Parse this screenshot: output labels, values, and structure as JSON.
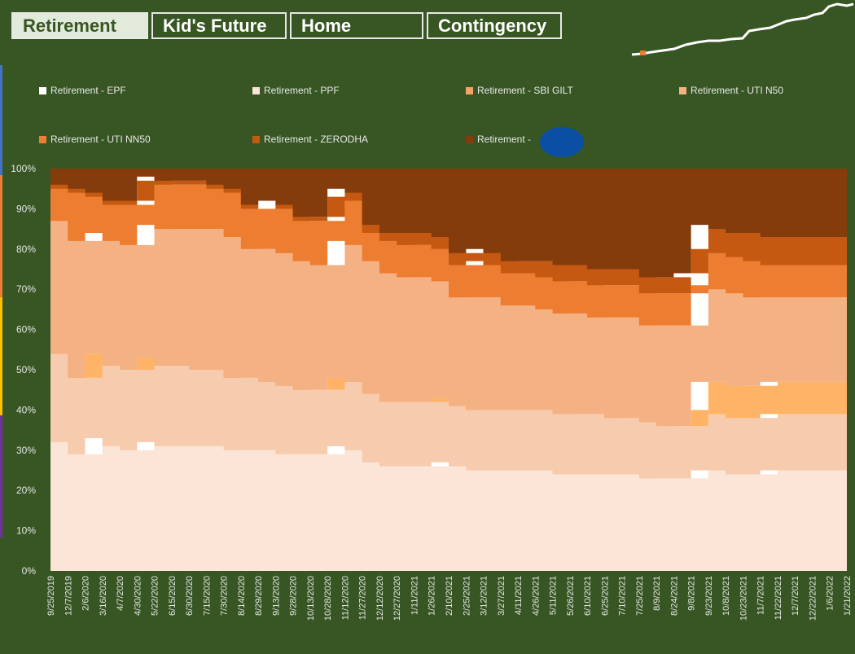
{
  "tabs": [
    {
      "label": "Retirement",
      "active": true
    },
    {
      "label": "Kid's Future",
      "active": false
    },
    {
      "label": "Home",
      "active": false
    },
    {
      "label": "Contingency",
      "active": false
    }
  ],
  "colors": {
    "background": "#375623",
    "tab_active_bg": "#e2eadb"
  },
  "sparkline_icon": "trend-sparkline-icon",
  "chart_data": {
    "type": "area",
    "stacked": true,
    "percent": true,
    "title": "",
    "xlabel": "",
    "ylabel": "",
    "ylim": [
      0,
      100
    ],
    "yticks": [
      "0%",
      "10%",
      "20%",
      "30%",
      "40%",
      "50%",
      "60%",
      "70%",
      "80%",
      "90%",
      "100%"
    ],
    "x": [
      "9/25/2019",
      "12/7/2019",
      "2/6/2020",
      "3/16/2020",
      "4/7/2020",
      "4/30/2020",
      "5/22/2020",
      "6/15/2020",
      "6/30/2020",
      "7/15/2020",
      "7/30/2020",
      "8/14/2020",
      "8/29/2020",
      "9/13/2020",
      "9/28/2020",
      "10/13/2020",
      "10/28/2020",
      "11/12/2020",
      "11/27/2020",
      "12/12/2020",
      "12/27/2020",
      "1/11/2021",
      "1/26/2021",
      "2/10/2021",
      "2/25/2021",
      "3/12/2021",
      "3/27/2021",
      "4/11/2021",
      "4/26/2021",
      "5/11/2021",
      "5/26/2021",
      "6/10/2021",
      "6/25/2021",
      "7/10/2021",
      "7/25/2021",
      "8/9/2021",
      "8/24/2021",
      "9/8/2021",
      "9/23/2021",
      "10/8/2021",
      "10/23/2021",
      "11/7/2021",
      "11/22/2021",
      "12/7/2021",
      "12/22/2021",
      "1/6/2022",
      "1/21/2022"
    ],
    "legend_position": "top",
    "series": [
      {
        "name": "Retirement - EPF",
        "color": "#fbe5d6",
        "values": [
          37,
          32,
          29,
          33,
          31,
          30,
          32,
          31,
          31,
          31,
          31,
          30,
          30,
          30,
          29,
          29,
          29,
          31,
          30,
          27,
          26,
          26,
          26,
          27,
          26,
          25,
          25,
          25,
          25,
          25,
          24,
          24,
          24,
          24,
          24,
          23,
          23,
          23,
          25,
          25,
          24,
          24,
          25,
          25,
          25,
          25,
          25
        ]
      },
      {
        "name": "Retirement - PPF",
        "color": "#f7cbad",
        "values": [
          30,
          22,
          19,
          21,
          20,
          20,
          21,
          20,
          20,
          19,
          19,
          18,
          18,
          17,
          17,
          16,
          16,
          17,
          17,
          17,
          16,
          16,
          16,
          16,
          15,
          15,
          15,
          15,
          15,
          15,
          15,
          15,
          15,
          14,
          14,
          14,
          13,
          13,
          15,
          14,
          14,
          14,
          14,
          14,
          14,
          14,
          14
        ]
      },
      {
        "name": "Retirement - SBI GILT",
        "color": "#ffb366",
        "values": [
          0,
          0,
          0,
          0,
          0,
          0,
          0,
          0,
          0,
          0,
          0,
          0,
          0,
          0,
          0,
          0,
          0,
          0,
          0,
          0,
          0,
          0,
          0,
          0,
          0,
          0,
          0,
          0,
          0,
          0,
          0,
          0,
          0,
          0,
          0,
          0,
          0,
          0,
          7,
          8,
          8,
          8,
          8,
          8,
          8,
          8,
          8
        ]
      },
      {
        "name": "Retirement - UTI N50",
        "color": "#f4b183",
        "values": [
          24,
          33,
          34,
          30,
          31,
          31,
          33,
          34,
          34,
          35,
          35,
          35,
          32,
          33,
          33,
          32,
          31,
          34,
          34,
          33,
          32,
          31,
          31,
          29,
          27,
          28,
          28,
          26,
          26,
          25,
          25,
          25,
          24,
          25,
          25,
          24,
          25,
          25,
          24,
          23,
          23,
          22,
          21,
          21,
          21,
          21,
          21
        ]
      },
      {
        "name": "Retirement - UTI NN50",
        "color": "#ed7d31",
        "values": [
          6,
          8,
          12,
          9,
          9,
          10,
          11,
          11,
          11,
          11,
          10,
          11,
          10,
          11,
          11,
          10,
          11,
          11,
          11,
          7,
          8,
          8,
          8,
          8,
          8,
          9,
          8,
          8,
          8,
          8,
          8,
          8,
          8,
          8,
          8,
          8,
          8,
          8,
          9,
          9,
          9,
          9,
          8,
          8,
          8,
          8,
          8
        ]
      },
      {
        "name": "Retirement - ZERODHA",
        "color": "#c65911",
        "values": [
          1,
          1,
          1,
          1,
          1,
          1,
          1,
          1,
          1,
          1,
          1,
          1,
          1,
          1,
          1,
          1,
          1,
          2,
          2,
          2,
          2,
          3,
          3,
          3,
          3,
          3,
          3,
          3,
          3,
          4,
          4,
          4,
          4,
          4,
          4,
          4,
          4,
          5,
          6,
          6,
          6,
          7,
          7,
          7,
          7,
          7,
          7
        ]
      },
      {
        "name": "Retirement -      ESPP",
        "color": "#843c0c",
        "values": [
          2,
          4,
          5,
          6,
          8,
          8,
          2,
          3,
          3,
          3,
          4,
          5,
          9,
          8,
          9,
          12,
          12,
          5,
          6,
          14,
          16,
          16,
          16,
          17,
          21,
          20,
          21,
          23,
          23,
          23,
          24,
          24,
          25,
          25,
          25,
          27,
          27,
          26,
          14,
          15,
          16,
          16,
          17,
          17,
          17,
          17,
          17
        ]
      }
    ]
  }
}
